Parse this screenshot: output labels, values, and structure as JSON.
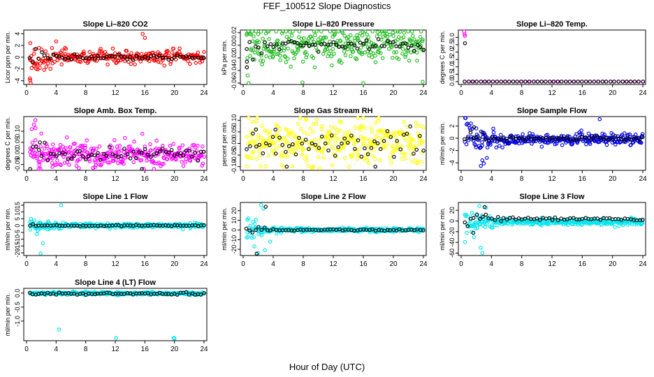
{
  "page": {
    "title": "FEF_100512  Slope Diagnostics",
    "xlabel": "Hour of Day (UTC)"
  },
  "chart_data": [
    {
      "type": "scatter",
      "title": "Slope Li–820 CO2",
      "ylabel": "Licor ppm per min.",
      "xlim": [
        0,
        24
      ],
      "xticks": [
        "0",
        "4",
        "8",
        "12",
        "16",
        "20",
        "24"
      ],
      "ylim": [
        -4.4,
        4.4
      ],
      "yticks": [
        {
          "v": -4,
          "label": "-4"
        },
        {
          "v": -2,
          "label": "-2"
        },
        {
          "v": 0,
          "label": "0"
        },
        {
          "v": 2,
          "label": "2"
        },
        {
          "v": 4,
          "label": "4"
        }
      ],
      "series": [
        {
          "name": "color",
          "color": "#ff0000",
          "n": 260,
          "noise": 0.55,
          "early_amp": 1.3,
          "points": [
            [
              0.5,
              2.4
            ],
            [
              0.45,
              -3.6
            ],
            [
              0.5,
              -3.9
            ],
            [
              0.55,
              -4.4
            ],
            [
              4.0,
              2.7
            ],
            [
              5.2,
              1.6
            ],
            [
              15.7,
              4.0
            ],
            [
              16.0,
              3.3
            ],
            [
              1.0,
              0.6
            ],
            [
              2.3,
              -0.9
            ]
          ]
        },
        {
          "name": "black",
          "color": "#000000",
          "n": 60,
          "noise": 0.22,
          "early_amp": 0.6,
          "points": []
        }
      ]
    },
    {
      "type": "scatter",
      "title": "Slope Li–820 Pressure",
      "ylabel": "kPa per min.",
      "xlim": [
        0,
        24
      ],
      "xticks": [
        "0",
        "4",
        "8",
        "12",
        "16",
        "20",
        "24"
      ],
      "ylim": [
        -0.06,
        0.022
      ],
      "yticks": [
        {
          "v": -0.06,
          "label": "-0.06"
        },
        {
          "v": -0.04,
          "label": "-0.04"
        },
        {
          "v": -0.02,
          "label": "-0.02"
        },
        {
          "v": 0,
          "label": "0.00"
        },
        {
          "v": 0.02,
          "label": "0.02"
        }
      ],
      "series": [
        {
          "name": "color",
          "color": "#22bb22",
          "n": 320,
          "noise": 0.013,
          "early_amp": 0.012,
          "points": [
            [
              0.6,
              -0.048
            ],
            [
              0.5,
              -0.035
            ],
            [
              16.0,
              -0.06
            ],
            [
              7.9,
              -0.059
            ],
            [
              23.9,
              -0.058
            ],
            [
              2.0,
              0.018
            ],
            [
              14.3,
              0.016
            ]
          ]
        },
        {
          "name": "black",
          "color": "#000000",
          "n": 60,
          "noise": 0.004,
          "early_amp": 0.01,
          "points": [
            [
              0.5,
              -0.026
            ],
            [
              0.5,
              -0.035
            ]
          ]
        }
      ]
    },
    {
      "type": "scatter",
      "title": "Slope Li–820 Temp.",
      "ylabel": "degrees C per min.",
      "xlim": [
        0,
        24
      ],
      "xticks": [
        "0",
        "4",
        "8",
        "12",
        "16",
        "20",
        "24"
      ],
      "ylim": [
        -0.1,
        3.4
      ],
      "yticks": [
        {
          "v": 0,
          "label": "0.0"
        },
        {
          "v": 0.5,
          "label": "0.5"
        },
        {
          "v": 1.0,
          "label": "1.0"
        },
        {
          "v": 1.5,
          "label": "1.5"
        },
        {
          "v": 2.0,
          "label": "2.0"
        },
        {
          "v": 2.5,
          "label": "2.5"
        },
        {
          "v": 3.0,
          "label": "3.0"
        }
      ],
      "series": [
        {
          "name": "color",
          "color": "#ff00ff",
          "n": 45,
          "noise": 0.0,
          "early_amp": 0.0,
          "points": [
            [
              0.4,
              3.4
            ],
            [
              0.45,
              3.2
            ],
            [
              0.5,
              3.1
            ]
          ]
        },
        {
          "name": "black",
          "color": "#000000",
          "n": 45,
          "noise": 0.0,
          "early_amp": 0.0,
          "points": [
            [
              0.5,
              2.6
            ]
          ]
        }
      ]
    },
    {
      "type": "scatter",
      "title": "Slope Amb. Box Temp.",
      "ylabel": "degrees C per min.",
      "xlim": [
        0,
        24
      ],
      "xticks": [
        "0",
        "4",
        "8",
        "12",
        "16",
        "20",
        "24"
      ],
      "ylim": [
        -0.07,
        0.16
      ],
      "yticks": [
        {
          "v": -0.05,
          "label": "-0.05"
        },
        {
          "v": 0,
          "label": "0.00"
        },
        {
          "v": 0.05,
          "label": "0.05"
        },
        {
          "v": 0.1,
          "label": "0.10"
        }
      ],
      "series": [
        {
          "name": "color",
          "color": "#ff00ff",
          "n": 330,
          "noise": 0.028,
          "early_amp": 0.02,
          "offset": -0.005,
          "points": [
            [
              1.2,
              0.15
            ],
            [
              1.0,
              0.13
            ],
            [
              0.7,
              0.11
            ],
            [
              2.0,
              0.09
            ],
            [
              3.5,
              -0.06
            ],
            [
              9.0,
              -0.065
            ]
          ]
        },
        {
          "name": "black",
          "color": "#000000",
          "n": 60,
          "noise": 0.02,
          "early_amp": 0.02,
          "offset": -0.005,
          "points": [
            [
              1.8,
              0.05
            ],
            [
              15.6,
              -0.07
            ]
          ]
        }
      ]
    },
    {
      "type": "scatter",
      "title": "Slope Gas Stream RH",
      "ylabel": "percent per min.",
      "xlim": [
        0,
        24
      ],
      "xticks": [
        "0",
        "4",
        "8",
        "12",
        "16",
        "20",
        "24"
      ],
      "ylim": [
        -0.11,
        0.11
      ],
      "yticks": [
        {
          "v": -0.1,
          "label": "-0.10"
        },
        {
          "v": -0.05,
          "label": "-0.05"
        },
        {
          "v": 0,
          "label": "0.00"
        },
        {
          "v": 0.05,
          "label": "0.05"
        },
        {
          "v": 0.1,
          "label": "0.10"
        }
      ],
      "series": [
        {
          "name": "color",
          "color": "#ffff00",
          "n": 340,
          "noise": 0.045,
          "early_amp": 0.0,
          "points": [
            [
              0.5,
              -0.1
            ],
            [
              7.6,
              0.11
            ],
            [
              16.0,
              0.11
            ]
          ]
        },
        {
          "name": "black",
          "color": "#000000",
          "n": 55,
          "noise": 0.035,
          "early_amp": 0.0,
          "points": [
            [
              1.7,
              0.06
            ],
            [
              4.3,
              0.06
            ],
            [
              5.8,
              -0.1
            ],
            [
              17.6,
              -0.1
            ]
          ]
        }
      ]
    },
    {
      "type": "scatter",
      "title": "Slope Sample Flow",
      "ylabel": "ml/min per min.",
      "xlim": [
        0,
        24
      ],
      "xticks": [
        "0",
        "4",
        "8",
        "12",
        "16",
        "20",
        "24"
      ],
      "ylim": [
        -5.0,
        3.3
      ],
      "yticks": [
        {
          "v": -4,
          "label": "-4"
        },
        {
          "v": -2,
          "label": "-2"
        },
        {
          "v": 0,
          "label": "0"
        },
        {
          "v": 2,
          "label": "2"
        }
      ],
      "series": [
        {
          "name": "color",
          "color": "#0000dd",
          "n": 320,
          "noise": 0.45,
          "early_amp": 1.6,
          "offset": -0.2,
          "points": [
            [
              2.6,
              -4.5
            ],
            [
              3.0,
              -4.1
            ],
            [
              2.8,
              -3.6
            ],
            [
              3.4,
              -3.2
            ],
            [
              18.3,
              3.1
            ],
            [
              2.0,
              1.6
            ]
          ]
        },
        {
          "name": "black",
          "color": "#000000",
          "n": 60,
          "noise": 0.15,
          "early_amp": 0.8,
          "points": [
            [
              1.7,
              1.8
            ]
          ]
        }
      ]
    },
    {
      "type": "scatter",
      "title": "Slope Line 1 Flow",
      "ylabel": "ml/min per min.",
      "xlim": [
        0,
        24
      ],
      "xticks": [
        "0",
        "4",
        "8",
        "12",
        "16",
        "20",
        "24"
      ],
      "ylim": [
        -21.0,
        16.0
      ],
      "yticks": [
        {
          "v": -20,
          "label": "-20"
        },
        {
          "v": -15,
          "label": "-15"
        },
        {
          "v": -10,
          "label": "-10"
        },
        {
          "v": -5,
          "label": "-5"
        },
        {
          "v": 0,
          "label": "0"
        },
        {
          "v": 5,
          "label": "5"
        },
        {
          "v": 10,
          "label": "10"
        },
        {
          "v": 15,
          "label": "15"
        }
      ],
      "series": [
        {
          "name": "color",
          "color": "#00e5ee",
          "n": 320,
          "noise": 0.8,
          "early_amp": 3.0,
          "points": [
            [
              1.9,
              -20.5
            ],
            [
              2.2,
              -13.0
            ],
            [
              4.7,
              15.0
            ],
            [
              0.6,
              5.0
            ]
          ]
        },
        {
          "name": "black",
          "color": "#000000",
          "n": 60,
          "noise": 0.2,
          "early_amp": 0.3,
          "points": []
        }
      ]
    },
    {
      "type": "scatter",
      "title": "Slope Line 2 Flow",
      "ylabel": "ml/min per min.",
      "xlim": [
        0,
        24
      ],
      "xticks": [
        "0",
        "4",
        "8",
        "12",
        "16",
        "20",
        "24"
      ],
      "ylim": [
        -25.0,
        27.0
      ],
      "yticks": [
        {
          "v": -20,
          "label": "-20"
        },
        {
          "v": -10,
          "label": "-10"
        },
        {
          "v": 0,
          "label": "0"
        },
        {
          "v": 10,
          "label": "10"
        },
        {
          "v": 20,
          "label": "20"
        }
      ],
      "series": [
        {
          "name": "color",
          "color": "#00e5ee",
          "n": 300,
          "noise": 0.9,
          "early_amp": 7.0,
          "points": [
            [
              2.4,
              26.0
            ],
            [
              2.7,
              22.0
            ],
            [
              2.0,
              -24.0
            ],
            [
              2.9,
              -21.0
            ],
            [
              1.5,
              -17.0
            ],
            [
              3.6,
              -12.0
            ],
            [
              0.7,
              12.0
            ]
          ]
        },
        {
          "name": "black",
          "color": "#000000",
          "n": 60,
          "noise": 0.4,
          "early_amp": 3.0,
          "points": [
            [
              3.0,
              24.0
            ],
            [
              1.8,
              -24.5
            ]
          ]
        }
      ]
    },
    {
      "type": "scatter",
      "title": "Slope Line 3 Flow",
      "ylabel": "ml/min per min.",
      "xlim": [
        0,
        24
      ],
      "xticks": [
        "0",
        "4",
        "8",
        "12",
        "16",
        "20",
        "24"
      ],
      "ylim": [
        -62.0,
        32.0
      ],
      "yticks": [
        {
          "v": -60,
          "label": "-60"
        },
        {
          "v": -40,
          "label": "-40"
        },
        {
          "v": -20,
          "label": "-20"
        },
        {
          "v": 0,
          "label": "0"
        },
        {
          "v": 20,
          "label": "20"
        }
      ],
      "series": [
        {
          "name": "color",
          "color": "#00e5ee",
          "n": 320,
          "noise": 3.0,
          "early_amp": 12.0,
          "offset": -2.0,
          "points": [
            [
              2.8,
              -60.0
            ],
            [
              2.6,
              -50.0
            ],
            [
              2.4,
              28.0
            ],
            [
              3.3,
              25.0
            ],
            [
              1.7,
              -30.0
            ]
          ]
        },
        {
          "name": "black",
          "color": "#000000",
          "n": 60,
          "noise": 1.5,
          "early_amp": 8.0,
          "offset": 4.0,
          "points": [
            [
              3.1,
              26.0
            ],
            [
              1.6,
              -22.0
            ]
          ]
        }
      ]
    },
    {
      "type": "scatter",
      "title": "Slope Line 4 (LT) Flow",
      "ylabel": "ml/min per min.",
      "xlim": [
        0,
        24
      ],
      "xticks": [
        "0",
        "4",
        "8",
        "12",
        "16",
        "20",
        "24"
      ],
      "ylim": [
        -1.65,
        0.12
      ],
      "yticks": [
        {
          "v": -1.0,
          "label": "-1.0"
        },
        {
          "v": -0.5,
          "label": "-0.5"
        },
        {
          "v": 0,
          "label": "0.0"
        }
      ],
      "series": [
        {
          "name": "color",
          "color": "#00e5ee",
          "n": 300,
          "noise": 0.025,
          "early_amp": 0.0,
          "offset": -0.01,
          "points": [
            [
              4.4,
              -1.3
            ],
            [
              12.1,
              -1.6
            ],
            [
              19.9,
              -1.6
            ],
            [
              20.0,
              -1.62
            ]
          ]
        },
        {
          "name": "black",
          "color": "#000000",
          "n": 60,
          "noise": 0.025,
          "early_amp": 0.0,
          "offset": -0.02,
          "points": []
        }
      ]
    }
  ]
}
